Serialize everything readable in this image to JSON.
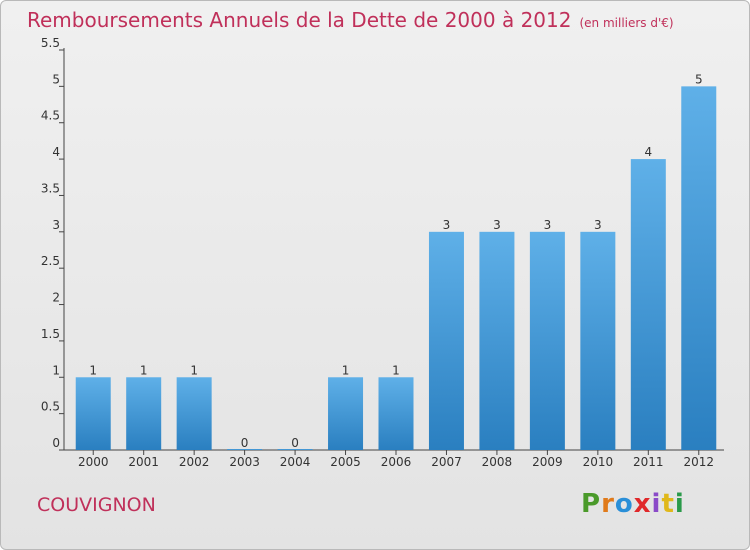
{
  "chart_data": {
    "type": "bar",
    "title": "Remboursements Annuels de la Dette de 2000 à 2012",
    "subtitle": "(en milliers d'€)",
    "categories": [
      "2000",
      "2001",
      "2002",
      "2003",
      "2004",
      "2005",
      "2006",
      "2007",
      "2008",
      "2009",
      "2010",
      "2011",
      "2012"
    ],
    "values": [
      1,
      1,
      1,
      0,
      0,
      1,
      1,
      3,
      3,
      3,
      3,
      4,
      5
    ],
    "value_labels": [
      "1",
      "1",
      "1",
      "0",
      "0",
      "1",
      "1",
      "3",
      "3",
      "3",
      "3",
      "4",
      "5"
    ],
    "yticks": [
      "0",
      "0.5",
      "1",
      "1.5",
      "2",
      "2.5",
      "3",
      "3.5",
      "4",
      "4.5",
      "5",
      "5.5"
    ],
    "ylim": [
      0,
      5.5
    ],
    "xlabel": "",
    "ylabel": "",
    "grid": false,
    "bar_color_top": "#5fb0e8",
    "bar_color_bottom": "#2a7fc0"
  },
  "commune": "COUVIGNON",
  "brand": {
    "letters": [
      "P",
      "r",
      "o",
      "x",
      "i",
      "t",
      "i"
    ],
    "colors": [
      "#4a9a2a",
      "#e07a1a",
      "#2a8fd8",
      "#e0282a",
      "#8a4ac8",
      "#e0b81a",
      "#2a9a4a"
    ]
  }
}
